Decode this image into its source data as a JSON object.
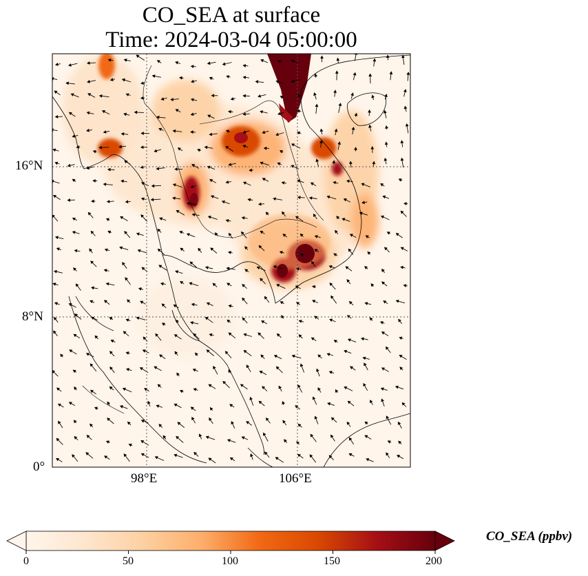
{
  "title": {
    "line1": "CO_SEA at surface",
    "line2": "Time: 2024-03-04 05:00:00"
  },
  "map": {
    "lat_range": [
      0,
      22
    ],
    "lon_range": [
      93,
      112
    ],
    "gridlines": true,
    "lat_ticks": [
      {
        "value": 16,
        "label": "16°N"
      },
      {
        "value": 8,
        "label": "8°N"
      },
      {
        "value": 0,
        "label": "0°"
      }
    ],
    "lon_ticks": [
      {
        "value": 98,
        "label": "98°E"
      },
      {
        "value": 106,
        "label": "106°E"
      }
    ],
    "field_colors": [
      "#fff5eb",
      "#fdd0a2",
      "#fd8d3c",
      "#d94801",
      "#a50f15",
      "#67000d"
    ]
  },
  "colorbar": {
    "label": "CO_SEA (ppbv)",
    "min": 0,
    "max": 200,
    "extend": "both",
    "ticks": [
      {
        "value": 0,
        "label": "0"
      },
      {
        "value": 50,
        "label": "50"
      },
      {
        "value": 100,
        "label": "100"
      },
      {
        "value": 150,
        "label": "150"
      },
      {
        "value": 200,
        "label": "200"
      }
    ],
    "colors": [
      "#fff5eb",
      "#fee6ce",
      "#fdd0a2",
      "#fdae6b",
      "#f16913",
      "#d94801",
      "#a50f15",
      "#67000d"
    ]
  }
}
